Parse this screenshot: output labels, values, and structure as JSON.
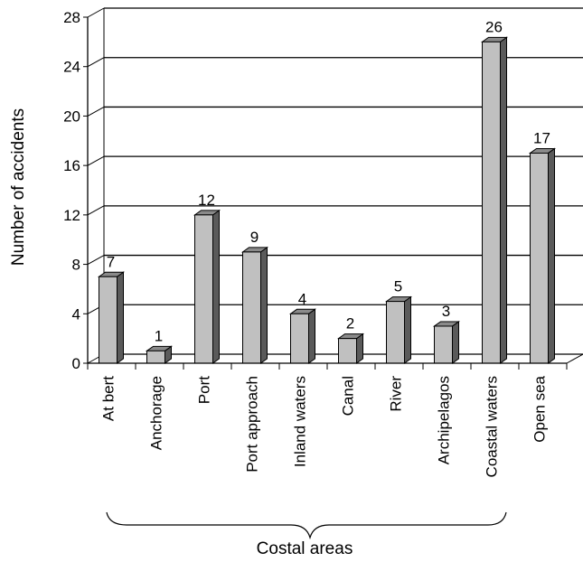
{
  "chart_data": {
    "type": "bar",
    "title": "",
    "ylabel": "Number of accidents",
    "xlabel": "Costal areas",
    "categories": [
      "At bert",
      "Anchorage",
      "Port",
      "Port approach",
      "Inland waters",
      "Canal",
      "River",
      "Archipelagos",
      "Coastal waters",
      "Open sea"
    ],
    "values": [
      7,
      1,
      12,
      9,
      4,
      2,
      5,
      3,
      26,
      17
    ],
    "ylim": [
      0,
      28
    ],
    "yticks": [
      0,
      4,
      8,
      12,
      16,
      20,
      24,
      28
    ],
    "grid": true,
    "bar_style": "3d",
    "colors": {
      "bar_front": "#c0c0c0",
      "bar_side": "#5a5a5a",
      "bar_top": "#8a8a8a",
      "gridline": "#000000",
      "background": "#ffffff"
    }
  }
}
